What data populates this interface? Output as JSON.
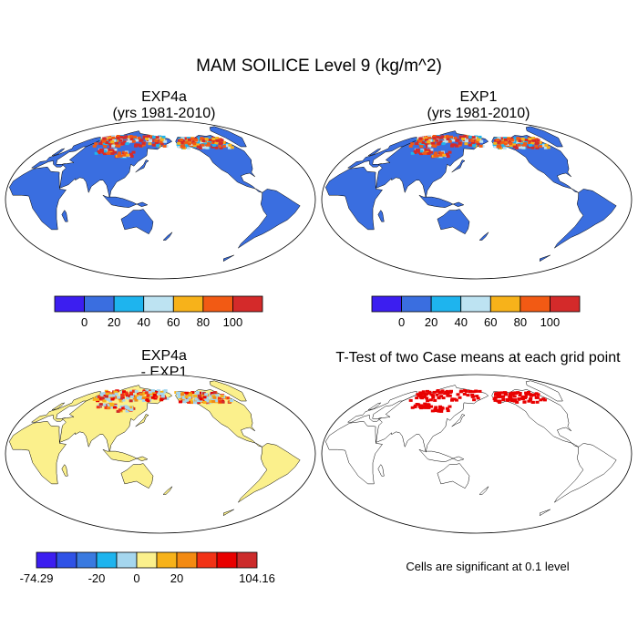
{
  "title": "MAM SOILICE Level 9 (kg/m^2)",
  "panels": [
    {
      "title_line1": "EXP4a",
      "title_line2": "(yrs 1981-2010)",
      "kind": "field"
    },
    {
      "title_line1": "EXP1",
      "title_line2": "(yrs 1981-2010)",
      "kind": "field"
    },
    {
      "title_line1": "EXP4a",
      "title_line2": "- EXP1",
      "kind": "difference"
    },
    {
      "title_line1": "T-Test of two Case means at each grid point",
      "kind": "significance"
    }
  ],
  "colorbars": {
    "field": {
      "colors": [
        "#3c1ef0",
        "#3a6ee0",
        "#1eb4ee",
        "#bde3f2",
        "#f7b21a",
        "#f25a14",
        "#d42a2a"
      ],
      "labels": [
        "0",
        "20",
        "40",
        "60",
        "80",
        "100"
      ]
    },
    "difference": {
      "colors": [
        "#3c1ef0",
        "#2f52e6",
        "#3a7ae0",
        "#1eb4ee",
        "#a5d6ee",
        "#fbf08c",
        "#f7b21a",
        "#f38a12",
        "#f23216",
        "#e80000",
        "#cc2b2b"
      ],
      "labels": [
        "-74.29",
        "-20",
        "0",
        "20",
        "104.16"
      ]
    }
  },
  "colors": {
    "ocean": "#ffffff",
    "land_field": "#3a6ee0",
    "land_diff": "#fbf08c",
    "significant": "#e80000",
    "outline": "#000000"
  },
  "note": "Cells are significant at 0.1 level"
}
